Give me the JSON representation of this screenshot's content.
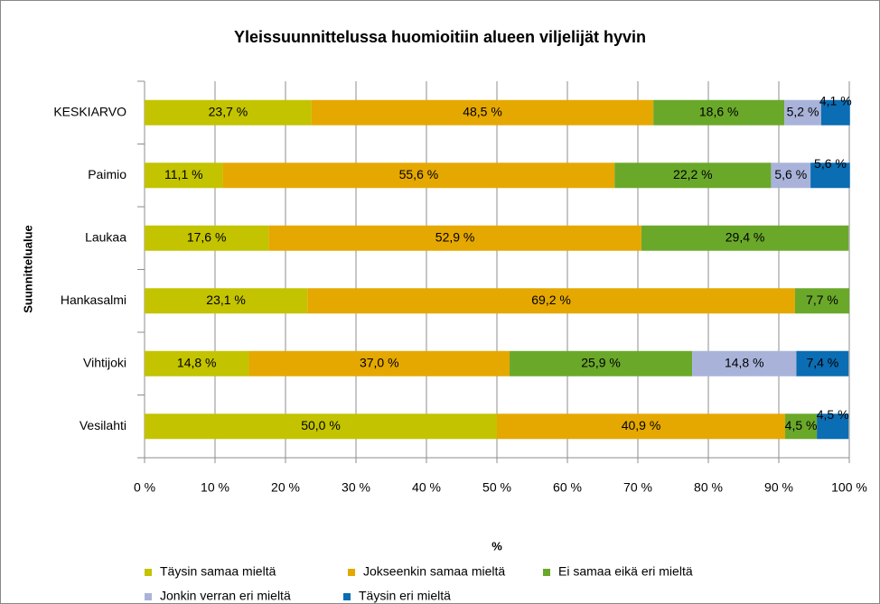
{
  "chart_data": {
    "type": "stacked-bar-horizontal",
    "title": "Yleissuunnittelussa huomioitiin alueen viljelijät hyvin",
    "x_label": "%",
    "y_label": "Suunnittelualue",
    "categories": [
      "KESKIARVO",
      "Paimio",
      "Laukaa",
      "Hankasalmi",
      "Vihtijoki",
      "Vesilahti"
    ],
    "series": [
      {
        "name": "Täysin samaa mieltä",
        "color": "#c3c300",
        "values": [
          23.7,
          11.1,
          17.6,
          23.1,
          14.8,
          50.0
        ],
        "value_labels": [
          "23,7 %",
          "11,1 %",
          "17,6 %",
          "23,1 %",
          "14,8 %",
          "50,0 %"
        ]
      },
      {
        "name": "Jokseenkin samaa mieltä",
        "color": "#e5a800",
        "values": [
          48.5,
          55.6,
          52.9,
          69.2,
          37.0,
          40.9
        ],
        "value_labels": [
          "48,5 %",
          "55,6 %",
          "52,9 %",
          "69,2 %",
          "37,0 %",
          "40,9 %"
        ]
      },
      {
        "name": "Ei samaa eikä eri mieltä",
        "color": "#6aa82a",
        "values": [
          18.6,
          22.2,
          29.4,
          7.7,
          25.9,
          4.5
        ],
        "value_labels": [
          "18,6 %",
          "22,2 %",
          "29,4 %",
          "7,7 %",
          "25,9 %",
          "4,5 %"
        ]
      },
      {
        "name": "Jonkin verran eri mieltä",
        "color": "#a9b3da",
        "values": [
          5.2,
          5.6,
          null,
          null,
          14.8,
          null
        ],
        "value_labels": [
          "5,2 %",
          "5,6 %",
          null,
          null,
          "14,8 %",
          null
        ]
      },
      {
        "name": "Täysin eri mieltä",
        "color": "#0b6db3",
        "values": [
          4.1,
          5.6,
          null,
          null,
          7.4,
          4.5
        ],
        "value_labels": [
          "4,1 %",
          "5,6 %",
          null,
          null,
          "7,4 %",
          "4,5 %"
        ]
      }
    ],
    "xlim": [
      0,
      100
    ],
    "xticks": [
      {
        "value": 0,
        "label": "0 %"
      },
      {
        "value": 10,
        "label": "10 %"
      },
      {
        "value": 20,
        "label": "20 %"
      },
      {
        "value": 30,
        "label": "30 %"
      },
      {
        "value": 40,
        "label": "40 %"
      },
      {
        "value": 50,
        "label": "50 %"
      },
      {
        "value": 60,
        "label": "60 %"
      },
      {
        "value": 70,
        "label": "70 %"
      },
      {
        "value": 80,
        "label": "80 %"
      },
      {
        "value": 90,
        "label": "90 %"
      },
      {
        "value": 100,
        "label": "100 %"
      }
    ],
    "grid": true,
    "legend": "bottom"
  }
}
